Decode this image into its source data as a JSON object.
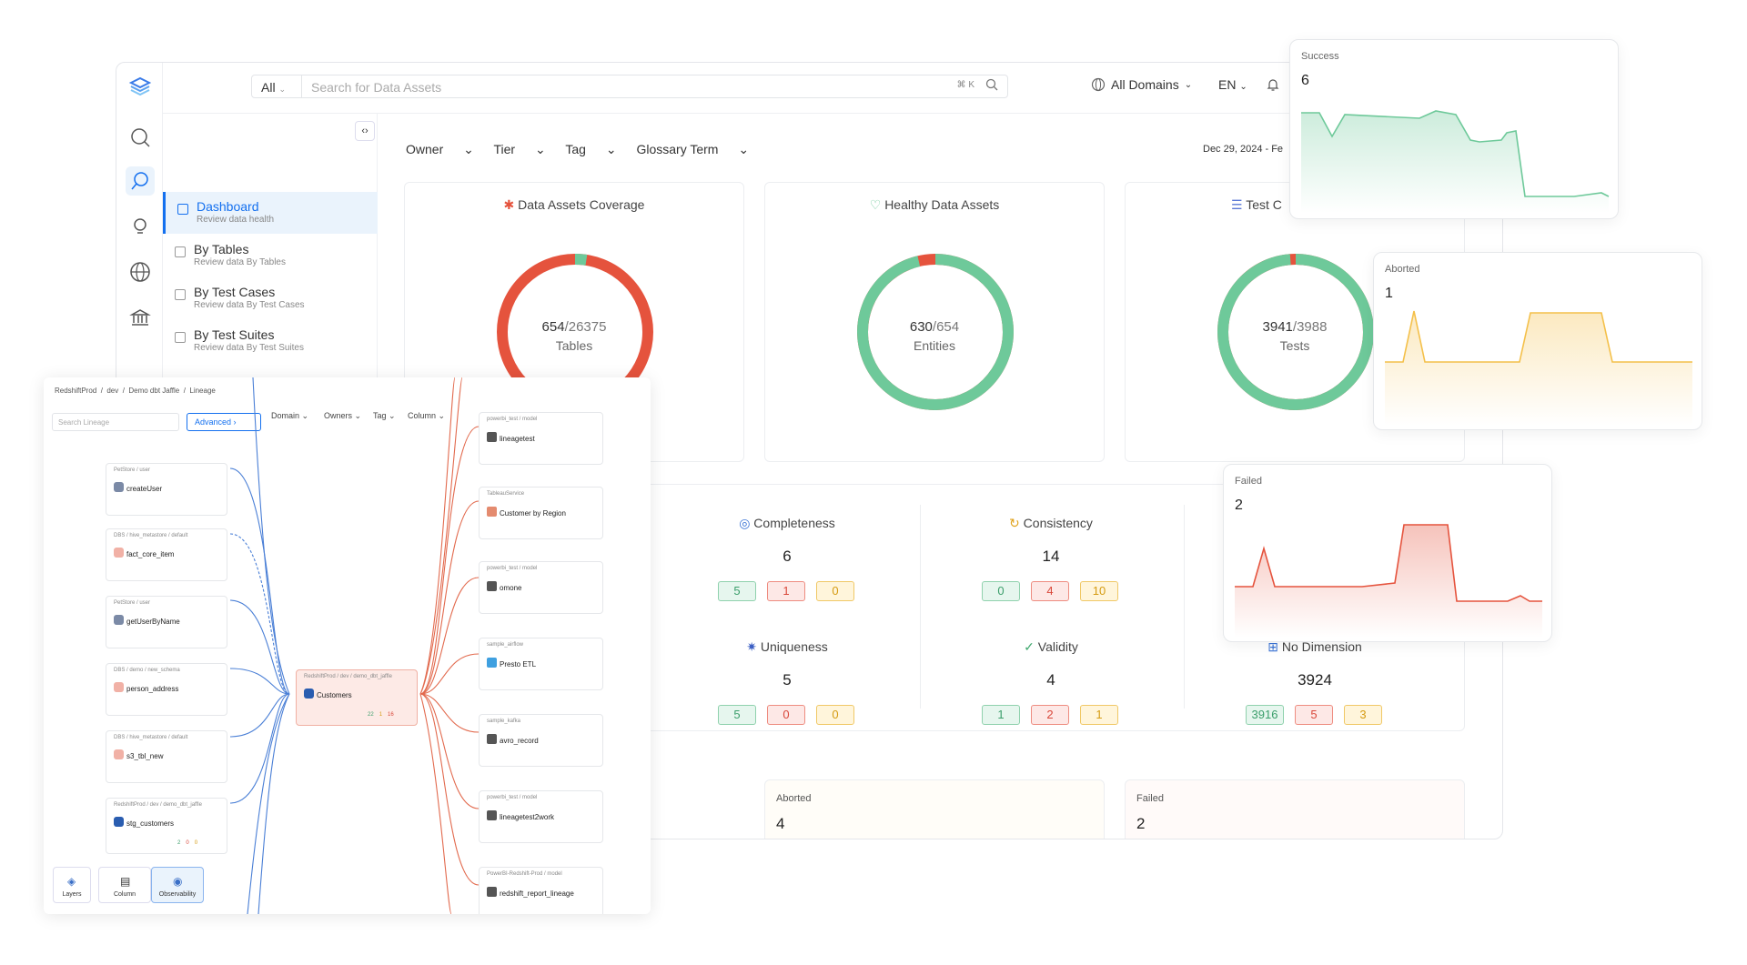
{
  "topbar": {
    "scope": "All",
    "search_placeholder": "Search for Data Assets",
    "kbd": "⌘ K",
    "domain": "All Domains",
    "lang": "EN"
  },
  "leftnav": {
    "items": [
      {
        "label": "Dashboard",
        "sub": "Review data health"
      },
      {
        "label": "By Tables",
        "sub": "Review data By Tables"
      },
      {
        "label": "By Test Cases",
        "sub": "Review data By Test Cases"
      },
      {
        "label": "By Test Suites",
        "sub": "Review data By Test Suites"
      }
    ]
  },
  "filters": {
    "owner": "Owner",
    "tier": "Tier",
    "tag": "Tag",
    "glossary": "Glossary Term",
    "date": "Dec 29, 2024 - Fe"
  },
  "cards": [
    {
      "title": "Data Assets Coverage",
      "value": "654",
      "total": "/26375",
      "unit": "Tables",
      "fraction": 0.0248,
      "color": "#e5533d"
    },
    {
      "title": "Healthy Data Assets",
      "value": "630",
      "total": "/654",
      "unit": "Entities",
      "fraction": 0.963,
      "color": "#6ec99a"
    },
    {
      "title": "Test C",
      "value": "3941",
      "total": "/3988",
      "unit": "Tests",
      "fraction": 0.988,
      "color": "#6ec99a"
    }
  ],
  "dimensions": [
    {
      "name": "Completeness",
      "total": "6",
      "success": "5",
      "failed": "1",
      "aborted": "0"
    },
    {
      "name": "Consistency",
      "total": "14",
      "success": "0",
      "failed": "4",
      "aborted": "10"
    },
    {
      "name": "Uniqueness",
      "total": "5",
      "success": "5",
      "failed": "0",
      "aborted": "0"
    },
    {
      "name": "Validity",
      "total": "4",
      "success": "1",
      "failed": "2",
      "aborted": "1"
    },
    {
      "name": "No Dimension",
      "total": "3924",
      "success": "3916",
      "failed": "5",
      "aborted": "3"
    }
  ],
  "bottom": {
    "aborted_label": "Aborted",
    "aborted_value": "4",
    "failed_label": "Failed",
    "failed_value": "2"
  },
  "floats": {
    "success_label": "Success",
    "success_value": "6",
    "aborted_label": "Aborted",
    "aborted_value": "1",
    "failed_label": "Failed",
    "failed_value": "2"
  },
  "lineage": {
    "breadcrumb": "RedshiftProd  /  dev  /  Demo dbt Jaffle  /  Lineage",
    "search_placeholder": "Search Lineage",
    "advanced": "Advanced",
    "filters": [
      "Domain",
      "Owners",
      "Tag",
      "Column"
    ],
    "left_nodes": [
      {
        "path": "PetStore / user",
        "name": "createUser"
      },
      {
        "path": "DBS / hive_metastore / default",
        "name": "fact_core_item"
      },
      {
        "path": "PetStore / user",
        "name": "getUserByName"
      },
      {
        "path": "DBS / demo / new_schema",
        "name": "person_address"
      },
      {
        "path": "DBS / hive_metastore / default",
        "name": "s3_tbl_new"
      },
      {
        "path": "RedshiftProd / dev / demo_dbt_jaffle",
        "name": "stg_customers",
        "counts": [
          "2",
          "0",
          "0"
        ]
      }
    ],
    "center": {
      "path": "RedshiftProd / dev / demo_dbt_jaffle",
      "name": "Customers",
      "counts": [
        "22",
        "1",
        "16"
      ]
    },
    "right_nodes": [
      {
        "path": "powerbi_test / model",
        "name": "lineagetest"
      },
      {
        "path": "TableauService",
        "name": "Customer by Region"
      },
      {
        "path": "powerbi_test / model",
        "name": "omone"
      },
      {
        "path": "sample_airflow",
        "name": "Presto ETL"
      },
      {
        "path": "sample_kafka",
        "name": "avro_record"
      },
      {
        "path": "powerbi_test / model",
        "name": "lineagetest2work"
      },
      {
        "path": "PowerBI-Redshift-Prod / model",
        "name": "redshift_report_lineage"
      }
    ],
    "toolbar": [
      "Layers",
      "Column",
      "Observability"
    ]
  }
}
